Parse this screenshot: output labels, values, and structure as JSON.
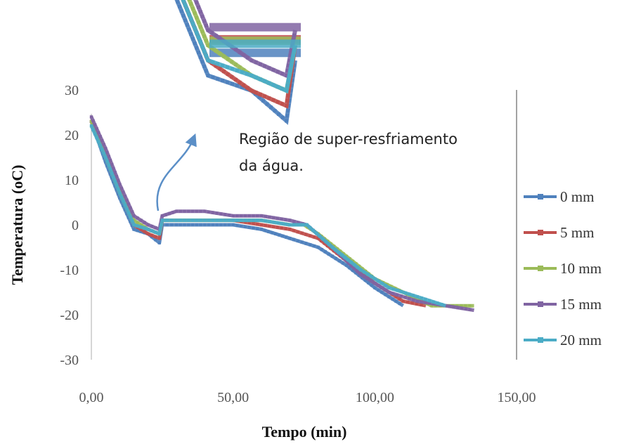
{
  "chart_data": {
    "type": "line",
    "xlabel": "Tempo (min)",
    "ylabel": "Temperatura (oC)",
    "xlim": [
      0,
      150
    ],
    "ylim": [
      -30,
      30
    ],
    "x_ticks": [
      "0,00",
      "50,00",
      "100,00",
      "150,00"
    ],
    "y_ticks": [
      "-30",
      "-20",
      "-10",
      "0",
      "10",
      "20",
      "30"
    ],
    "grid": false,
    "legend_position": "right",
    "annotation": {
      "lines": [
        "Região de super-resfriamento",
        "da água."
      ]
    },
    "series": [
      {
        "name": "0 mm",
        "color": "#4F81BD",
        "x": [
          0,
          5,
          10,
          15,
          20,
          24,
          25,
          30,
          40,
          50,
          60,
          65,
          70,
          80,
          90,
          100,
          105,
          110
        ],
        "y": [
          23,
          14,
          6,
          -1,
          -2,
          -4,
          0,
          0,
          0,
          0,
          -1,
          -2,
          -3,
          -5,
          -9,
          -14,
          -16,
          -18
        ]
      },
      {
        "name": "5 mm",
        "color": "#C0504D",
        "x": [
          0,
          5,
          10,
          15,
          20,
          24,
          25,
          30,
          40,
          50,
          60,
          70,
          80,
          90,
          100,
          110,
          118
        ],
        "y": [
          23,
          15,
          7,
          0,
          -2,
          -3,
          1,
          1,
          1,
          1,
          0,
          -1,
          -3,
          -8,
          -13,
          -17,
          -18
        ]
      },
      {
        "name": "10 mm",
        "color": "#9BBB59",
        "x": [
          0,
          5,
          10,
          15,
          20,
          24,
          25,
          30,
          40,
          50,
          60,
          70,
          75,
          80,
          90,
          100,
          110,
          120,
          135
        ],
        "y": [
          23,
          16,
          8,
          1,
          -1,
          -2,
          1,
          1,
          1,
          1,
          1,
          0,
          0,
          -2,
          -7,
          -12,
          -15,
          -18,
          -18
        ]
      },
      {
        "name": "15 mm",
        "color": "#8064A2",
        "x": [
          0,
          5,
          10,
          15,
          20,
          24,
          25,
          30,
          40,
          50,
          60,
          70,
          76,
          85,
          95,
          105,
          115,
          125,
          135
        ],
        "y": [
          24,
          17,
          9,
          2,
          0,
          -1,
          2,
          3,
          3,
          2,
          2,
          1,
          0,
          -5,
          -11,
          -15,
          -17,
          -18,
          -19
        ]
      },
      {
        "name": "20 mm",
        "color": "#4BACC6",
        "x": [
          0,
          5,
          10,
          15,
          20,
          24,
          25,
          30,
          40,
          50,
          60,
          70,
          76,
          85,
          95,
          105,
          115,
          125
        ],
        "y": [
          22,
          15,
          7,
          0,
          -1,
          -2,
          1,
          1,
          1,
          1,
          1,
          0,
          0,
          -5,
          -10,
          -14,
          -16,
          -18
        ]
      }
    ]
  }
}
